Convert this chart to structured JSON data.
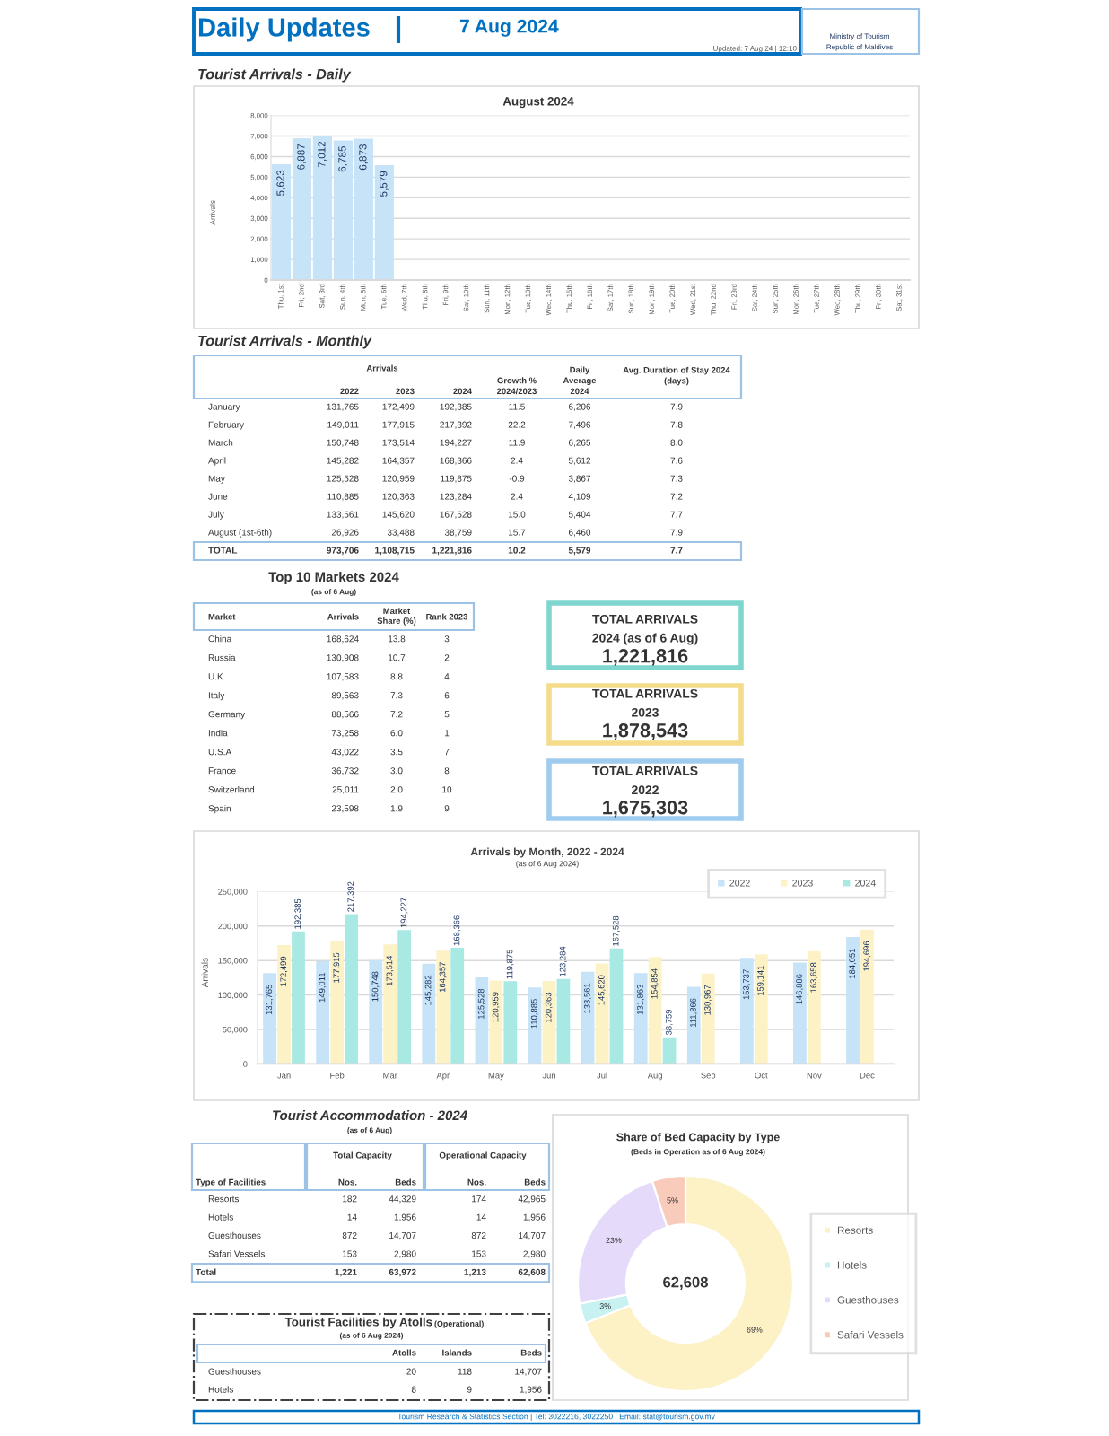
{
  "chart_data": [
    {
      "type": "other",
      "title": "Daily Updates",
      "subtitle": "7 Aug 2024",
      "annotations": [
        "Updated: 7 Aug 24 | 12:10",
        "Ministry of Tourism",
        "Republic of Maldives"
      ]
    },
    {
      "type": "bar",
      "title": "Tourist Arrivals - Daily",
      "subtitle": "August 2024",
      "ylabel": "Arrivals",
      "categories": [
        "Thu, 1st",
        "Fri, 2nd",
        "Sat, 3rd",
        "Sun, 4th",
        "Mon, 5th",
        "Tue, 6th",
        "Wed, 7th",
        "Thu, 8th",
        "Fri, 9th",
        "Sat, 10th",
        "Sun, 11th",
        "Mon, 12th",
        "Tue, 13th",
        "Wed, 14th",
        "Thu, 15th",
        "Fri, 16th",
        "Sat, 17th",
        "Sun, 18th",
        "Mon, 19th",
        "Tue, 20th",
        "Wed, 21st",
        "Thu, 22nd",
        "Fri, 23rd",
        "Sat, 24th",
        "Sun, 25th",
        "Mon, 26th",
        "Tue, 27th",
        "Wed, 28th",
        "Thu, 29th",
        "Fri, 30th",
        "Sat, 31st"
      ],
      "values": [
        5623,
        6887,
        7012,
        6785,
        6873,
        5579,
        null,
        null,
        null,
        null,
        null,
        null,
        null,
        null,
        null,
        null,
        null,
        null,
        null,
        null,
        null,
        null,
        null,
        null,
        null,
        null,
        null,
        null,
        null,
        null,
        null
      ],
      "value_labels": [
        "5,623",
        "6,887",
        "7,012",
        "6,785",
        "6,873",
        "5,579",
        null,
        null,
        null,
        null,
        null,
        null,
        null,
        null,
        null,
        null,
        null,
        null,
        null,
        null,
        null,
        null,
        null,
        null,
        null,
        null,
        null,
        null,
        null,
        null,
        null
      ],
      "color": "#c6e3f8",
      "ylim": [
        0,
        8000
      ],
      "yticks": [
        0,
        {
          "value": 1000,
          "label": "1,000"
        },
        {
          "value": 2000,
          "label": "2,000"
        },
        {
          "value": 3000,
          "label": "3,000"
        },
        {
          "value": 4000,
          "label": "4,000"
        },
        {
          "value": 5000,
          "label": "5,000"
        },
        {
          "value": 6000,
          "label": "6,000"
        },
        {
          "value": 7000,
          "label": "7,000"
        },
        {
          "value": 8000,
          "label": "8,000"
        }
      ],
      "grid": "y"
    },
    {
      "type": "other",
      "title": "Tourist Arrivals - Monthly",
      "annotations": [
        "Arrivals"
      ],
      "categories": [
        "2022",
        "2023",
        "2024",
        "Growth %\n2024/2023",
        "Daily\nAverage\n2024",
        "Avg. Duration of Stay 2024\n(days)"
      ],
      "y_categories": [
        "January",
        "February",
        "March",
        "April",
        "May",
        "June",
        "July",
        "August (1st-6th)",
        "TOTAL"
      ],
      "cell_labels": [
        [
          "131,765",
          "172,499",
          "192,385",
          "11.5",
          "6,206",
          "7.9"
        ],
        [
          "149,011",
          "177,915",
          "217,392",
          "22.2",
          "7,496",
          "7.8"
        ],
        [
          "150,748",
          "173,514",
          "194,227",
          "11.9",
          "6,265",
          "8.0"
        ],
        [
          "145,282",
          "164,357",
          "168,366",
          "2.4",
          "5,612",
          "7.6"
        ],
        [
          "125,528",
          "120,959",
          "119,875",
          "-0.9",
          "3,867",
          "7.3"
        ],
        [
          "110,885",
          "120,363",
          "123,284",
          "2.4",
          "4,109",
          "7.2"
        ],
        [
          "133,561",
          "145,620",
          "167,528",
          "15.0",
          "5,404",
          "7.7"
        ],
        [
          "26,926",
          "33,488",
          "38,759",
          "15.7",
          "6,460",
          "7.9"
        ],
        [
          "973,706",
          "1,108,715",
          "1,221,816",
          "10.2",
          "5,579",
          "7.7"
        ]
      ]
    },
    {
      "type": "other",
      "title": "Top 10 Markets 2024",
      "subtitle": "(as of 6 Aug)",
      "ylabel": "Market",
      "categories": [
        "Arrivals",
        "Market\nShare (%)",
        "Rank 2023"
      ],
      "y_categories": [
        "China",
        "Russia",
        "U.K",
        "Italy",
        "Germany",
        "India",
        "U.S.A",
        "France",
        "Switzerland",
        "Spain"
      ],
      "cell_labels": [
        [
          "168,624",
          "13.8",
          "3"
        ],
        [
          "130,908",
          "10.7",
          "2"
        ],
        [
          "107,583",
          "8.8",
          "4"
        ],
        [
          "89,563",
          "7.3",
          "6"
        ],
        [
          "88,566",
          "7.2",
          "5"
        ],
        [
          "73,258",
          "6.0",
          "1"
        ],
        [
          "43,022",
          "3.5",
          "7"
        ],
        [
          "36,732",
          "3.0",
          "8"
        ],
        [
          "25,011",
          "2.0",
          "10"
        ],
        [
          "23,598",
          "1.9",
          "9"
        ]
      ]
    },
    {
      "type": "other",
      "title": "TOTAL ARRIVALS",
      "subtitle": "2024 (as of 6 Aug)",
      "annotations": [
        "1,221,816"
      ],
      "color": "#7fd6cf"
    },
    {
      "type": "other",
      "title": "TOTAL ARRIVALS",
      "subtitle": "2023",
      "annotations": [
        "1,878,543"
      ],
      "color": "#f5dc8a"
    },
    {
      "type": "other",
      "title": "TOTAL ARRIVALS",
      "subtitle": "2022",
      "annotations": [
        "1,675,303"
      ],
      "color": "#9fcbee"
    },
    {
      "type": "bar",
      "title": "Arrivals by Month, 2022 - 2024",
      "subtitle": "(as of 6 Aug 2024)",
      "ylabel": "Arrivals",
      "categories": [
        "Jan",
        "Feb",
        "Mar",
        "Apr",
        "May",
        "Jun",
        "Jul",
        "Aug",
        "Sep",
        "Oct",
        "Nov",
        "Dec"
      ],
      "series": [
        {
          "name": "2022",
          "color": "#c6e3f8",
          "values": [
            131765,
            149011,
            150748,
            145282,
            125528,
            110885,
            133561,
            131863,
            111866,
            153737,
            146886,
            184051
          ],
          "value_labels": [
            "131,765",
            "149,011",
            "150,748",
            "145,282",
            "125,528",
            "110,885",
            "133,561",
            "131,863",
            "111,866",
            "153,737",
            "146,886",
            "184,051"
          ]
        },
        {
          "name": "2023",
          "color": "#fdf1c6",
          "values": [
            172499,
            177915,
            173514,
            164357,
            120959,
            120363,
            145620,
            154854,
            130967,
            159141,
            163658,
            194696
          ],
          "value_labels": [
            "172,499",
            "177,915",
            "173,514",
            "164,357",
            "120,959",
            "120,363",
            "145,620",
            "154,854",
            "130,967",
            "159,141",
            "163,658",
            "194,696"
          ]
        },
        {
          "name": "2024",
          "color": "#a9e9e3",
          "values": [
            192385,
            217392,
            194227,
            168366,
            119875,
            123284,
            167528,
            38759,
            null,
            null,
            null,
            null
          ],
          "value_labels": [
            "192,385",
            "217,392",
            "194,227",
            "168,366",
            "119,875",
            "123,284",
            "167,528",
            "38,759",
            null,
            null,
            null,
            null
          ]
        }
      ],
      "ylim": [
        0,
        250000
      ],
      "yticks": [
        0,
        {
          "value": 50000,
          "label": "50,000"
        },
        {
          "value": 100000,
          "label": "100,000"
        },
        {
          "value": 150000,
          "label": "150,000"
        },
        {
          "value": 200000,
          "label": "200,000"
        },
        {
          "value": 250000,
          "label": "250,000"
        }
      ],
      "grid": "y",
      "legend": "top right"
    },
    {
      "type": "other",
      "title": "Tourist Accommodation - 2024",
      "subtitle": "(as of 6 Aug)",
      "annotations": [
        "Total Capacity",
        "Operational Capacity"
      ],
      "ylabel": "Type of Facilities",
      "categories": [
        "Nos.",
        "Beds",
        "Nos.",
        "Beds"
      ],
      "y_categories": [
        "Resorts",
        "Hotels",
        "Guesthouses",
        "Safari Vessels",
        "Total"
      ],
      "cell_labels": [
        [
          "182",
          "44,329",
          "174",
          "42,965"
        ],
        [
          "14",
          "1,956",
          "14",
          "1,956"
        ],
        [
          "872",
          "14,707",
          "872",
          "14,707"
        ],
        [
          "153",
          "2,980",
          "153",
          "2,980"
        ],
        [
          "1,221",
          "63,972",
          "1,213",
          "62,608"
        ]
      ]
    },
    {
      "type": "donut",
      "title": "Share of Bed Capacity by Type",
      "subtitle": "(Beds in Operation as of 6 Aug 2024)",
      "categories": [
        "Resorts",
        "Hotels",
        "Guesthouses",
        "Safari Vessels"
      ],
      "values": [
        69,
        3,
        23,
        5
      ],
      "value_labels": [
        "69%",
        "3%",
        "23%",
        "5%"
      ],
      "colors": [
        "#fdf1c6",
        "#c8f2f2",
        "#e6dafa",
        "#f8cbbb"
      ],
      "legend": "right",
      "annotations": [
        "62,608"
      ]
    },
    {
      "type": "other",
      "title": "Tourist Facilities by Atolls",
      "subtitle": "(as of 6 Aug 2024)",
      "annotations": [
        "(Operational)"
      ],
      "categories": [
        "Atolls",
        "Islands",
        "Beds"
      ],
      "y_categories": [
        "Guesthouses",
        "Hotels"
      ],
      "cell_labels": [
        [
          "20",
          "118",
          "14,707"
        ],
        [
          "8",
          "9",
          "1,956"
        ]
      ]
    },
    {
      "type": "other",
      "annotations": [
        "Tourism Research & Statistics Section | Tel: 3022216, 3022250 | Email: stat@tourism.gov.mv"
      ]
    }
  ]
}
